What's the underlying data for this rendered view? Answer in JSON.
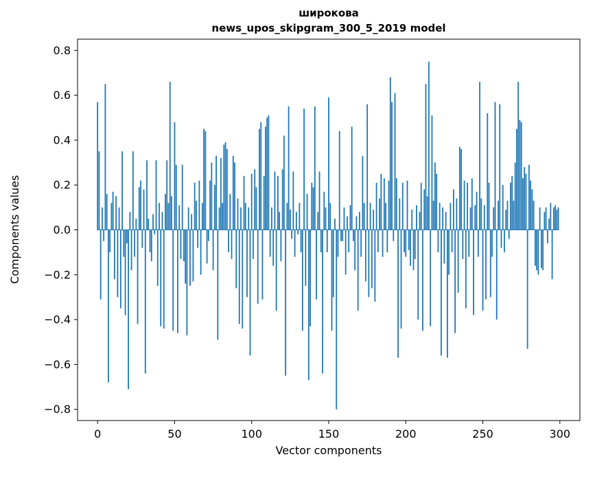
{
  "title": {
    "line1": "широкова",
    "line2": "news_upos_skipgram_300_5_2019 model"
  },
  "chart_data": {
    "type": "bar",
    "title": "широкова\nnews_upos_skipgram_300_5_2019 model",
    "xlabel": "Vector components",
    "ylabel": "Components values",
    "legend": "none",
    "grid": false,
    "bar_color": "#1f77b4",
    "xlim": [
      -13,
      313
    ],
    "ylim": [
      -0.85,
      0.85
    ],
    "x_ticks": [
      0,
      50,
      100,
      150,
      200,
      250,
      300
    ],
    "y_ticks": [
      -0.8,
      -0.6,
      -0.4,
      -0.2,
      0.0,
      0.2,
      0.4,
      0.6,
      0.8
    ],
    "values": [
      0.57,
      0.35,
      -0.31,
      0.1,
      -0.05,
      0.65,
      0.16,
      -0.68,
      -0.1,
      0.12,
      0.17,
      -0.22,
      0.15,
      -0.3,
      0.1,
      -0.35,
      0.35,
      -0.12,
      -0.38,
      -0.06,
      -0.71,
      0.08,
      -0.18,
      0.35,
      -0.12,
      0.05,
      -0.42,
      0.19,
      0.22,
      -0.08,
      0.18,
      -0.64,
      0.31,
      0.05,
      -0.1,
      -0.14,
      0.07,
      -0.02,
      0.31,
      -0.25,
      0.12,
      -0.43,
      0.08,
      -0.44,
      0.16,
      0.31,
      0.12,
      0.66,
      0.15,
      -0.45,
      0.48,
      0.29,
      -0.46,
      0.11,
      -0.13,
      0.29,
      -0.14,
      -0.24,
      -0.47,
      0.1,
      -0.25,
      0.07,
      -0.23,
      0.21,
      0.13,
      -0.08,
      0.22,
      -0.2,
      0.12,
      0.45,
      0.44,
      -0.15,
      -0.05,
      0.22,
      0.3,
      -0.18,
      0.2,
      0.33,
      -0.49,
      0.1,
      0.32,
      0.12,
      0.38,
      0.39,
      0.36,
      -0.1,
      0.16,
      -0.13,
      0.33,
      0.3,
      -0.26,
      0.14,
      -0.42,
      0.1,
      -0.44,
      0.24,
      0.12,
      -0.3,
      0.1,
      -0.56,
      0.25,
      -0.13,
      0.27,
      0.19,
      -0.33,
      0.45,
      0.48,
      -0.31,
      0.24,
      0.46,
      0.5,
      0.51,
      -0.12,
      0.1,
      -0.16,
      0.26,
      -0.36,
      0.24,
      0.08,
      -0.14,
      0.27,
      0.42,
      -0.65,
      0.12,
      0.55,
      0.09,
      -0.04,
      0.26,
      -0.12,
      0.08,
      -0.02,
      0.12,
      -0.1,
      -0.45,
      0.54,
      -0.25,
      0.16,
      -0.67,
      -0.43,
      0.21,
      0.19,
      0.55,
      -0.31,
      0.08,
      0.26,
      -0.1,
      -0.64,
      0.17,
      0.1,
      -0.1,
      0.59,
      0.12,
      -0.45,
      -0.3,
      0.05,
      -0.8,
      -0.12,
      0.44,
      -0.05,
      -0.05,
      0.1,
      -0.2,
      0.06,
      -0.1,
      0.11,
      0.46,
      -0.05,
      -0.18,
      0.06,
      -0.36,
      0.08,
      -0.12,
      0.33,
      0.12,
      -0.23,
      0.56,
      -0.3,
      0.12,
      -0.26,
      0.09,
      -0.32,
      0.21,
      -0.1,
      0.14,
      0.25,
      -0.12,
      0.23,
      0.12,
      -0.1,
      0.22,
      0.68,
      0.57,
      -0.05,
      0.61,
      0.23,
      -0.57,
      0.14,
      -0.44,
      0.21,
      -0.1,
      -0.12,
      0.22,
      -0.09,
      -0.16,
      0.09,
      -0.18,
      -0.13,
      0.11,
      -0.4,
      0.08,
      0.21,
      -0.45,
      0.18,
      0.65,
      0.15,
      0.75,
      -0.43,
      0.51,
      0.13,
      0.3,
      0.25,
      -0.1,
      0.12,
      -0.56,
      0.1,
      -0.15,
      0.08,
      -0.57,
      -0.2,
      0.12,
      -0.1,
      0.18,
      -0.46,
      0.14,
      -0.28,
      0.37,
      0.36,
      -0.13,
      0.22,
      -0.35,
      0.21,
      -0.12,
      0.1,
      0.23,
      -0.38,
      0.11,
      0.17,
      -0.12,
      0.66,
      0.14,
      -0.36,
      0.11,
      -0.31,
      0.52,
      0.21,
      -0.3,
      -0.12,
      0.1,
      0.57,
      -0.4,
      0.13,
      0.56,
      -0.08,
      0.2,
      -0.1,
      0.09,
      0.13,
      -0.04,
      0.21,
      0.24,
      0.13,
      0.3,
      0.45,
      0.66,
      0.49,
      0.48,
      0.23,
      0.28,
      0.25,
      -0.53,
      0.29,
      0.22,
      0.18,
      0.13,
      -0.16,
      -0.18,
      -0.2,
      0.1,
      -0.17,
      -0.18,
      0.08,
      0.1,
      -0.06,
      0.05,
      0.12,
      -0.22,
      0.1,
      0.11,
      0.09,
      0.1
    ]
  }
}
